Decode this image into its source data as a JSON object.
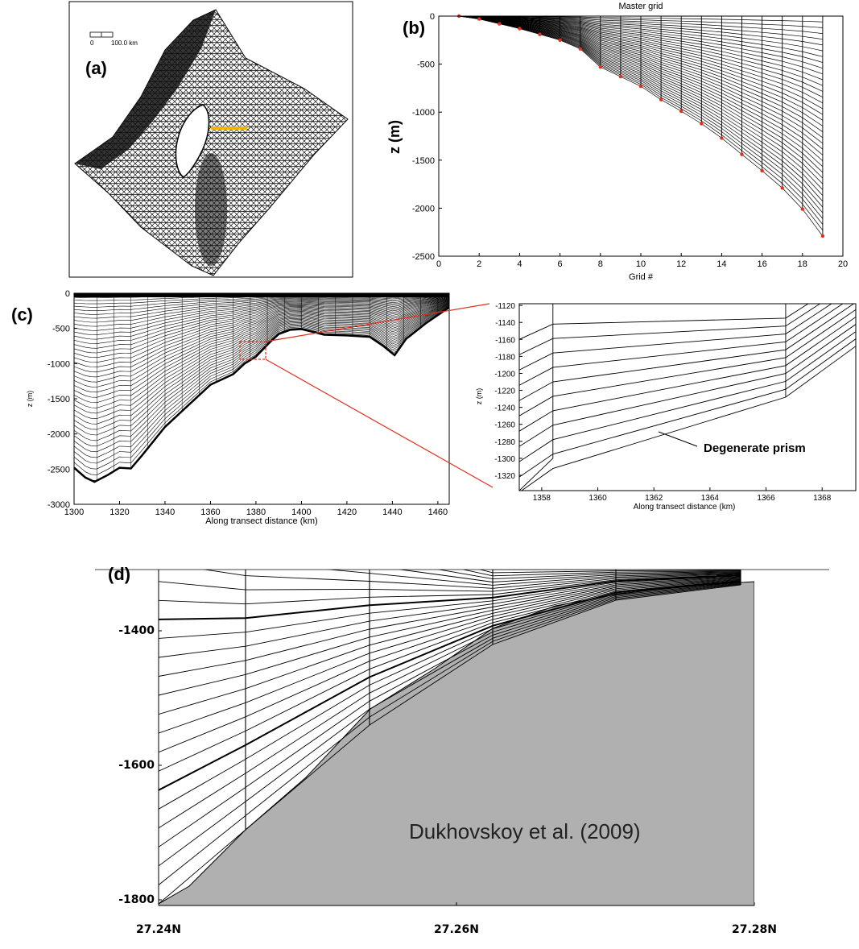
{
  "panels": {
    "a": {
      "letter": "(a)",
      "scalebar": {
        "zero": "0",
        "distance": "100.0 km"
      }
    },
    "b": {
      "letter": "(b)",
      "title": "Master grid",
      "xlabel": "Grid #",
      "ylabel": "z (m)",
      "xticks": [
        "0",
        "2",
        "4",
        "6",
        "8",
        "10",
        "12",
        "14",
        "16",
        "18",
        "20"
      ],
      "yticks": [
        "0",
        "-500",
        "-1000",
        "-1500",
        "-2000",
        "-2500"
      ]
    },
    "c": {
      "letter": "(c)",
      "xlabel": "Along transect distance (km)",
      "ylabel": "z (m)",
      "xticks": [
        "1300",
        "1320",
        "1340",
        "1360",
        "1380",
        "1400",
        "1420",
        "1440",
        "1460"
      ],
      "yticks": [
        "0",
        "-500",
        "-1000",
        "-1500",
        "-2000",
        "-2500",
        "-3000"
      ]
    },
    "c_zoom": {
      "xlabel": "Along transect distance (km)",
      "ylabel": "z (m)",
      "xticks": [
        "1358",
        "1360",
        "1362",
        "1364",
        "1366",
        "1368"
      ],
      "yticks": [
        "-1120",
        "-1140",
        "-1160",
        "-1180",
        "-1200",
        "-1220",
        "-1240",
        "-1260",
        "-1280",
        "-1300",
        "-1320"
      ],
      "annotation": "Degenerate prism"
    },
    "d": {
      "letter": "(d)",
      "yticks": [
        "-1400",
        "-1600",
        "-1800"
      ],
      "xticks": [
        "27.24N",
        "27.26N",
        "27.28N"
      ],
      "citation": "Dukhovskoy et al. (2009)"
    }
  },
  "chart_data": [
    {
      "type": "line",
      "panel": "b",
      "title": "Master grid",
      "xlabel": "Grid #",
      "ylabel": "z (m)",
      "xlim": [
        0,
        20
      ],
      "ylim": [
        -2500,
        0
      ],
      "series": [
        {
          "x": [
            1,
            2,
            3,
            4,
            5,
            6,
            7,
            8,
            9,
            10,
            11,
            12,
            13,
            14,
            15,
            16,
            17,
            18,
            19
          ],
          "values": [
            0,
            -30,
            -80,
            -130,
            -190,
            -250,
            -340,
            -530,
            -630,
            -730,
            -870,
            -990,
            -1120,
            -1270,
            -1440,
            -1610,
            -1790,
            -2010,
            -2290
          ]
        }
      ]
    },
    {
      "type": "area",
      "panel": "c",
      "xlabel": "Along transect distance (km)",
      "ylabel": "z (m)",
      "xlim": [
        1300,
        1465
      ],
      "ylim": [
        -3000,
        0
      ],
      "series": [
        {
          "x": [
            1300,
            1305,
            1309,
            1315,
            1320,
            1325,
            1330,
            1340,
            1350,
            1360,
            1370,
            1375,
            1380,
            1386,
            1390,
            1395,
            1400,
            1410,
            1420,
            1430,
            1436,
            1441,
            1446,
            1455,
            1465
          ],
          "values": [
            -2480,
            -2620,
            -2680,
            -2580,
            -2480,
            -2490,
            -2300,
            -1900,
            -1600,
            -1300,
            -1150,
            -1000,
            -900,
            -700,
            -580,
            -520,
            -510,
            -590,
            -600,
            -620,
            -750,
            -880,
            -650,
            -420,
            -200
          ]
        }
      ]
    }
  ]
}
